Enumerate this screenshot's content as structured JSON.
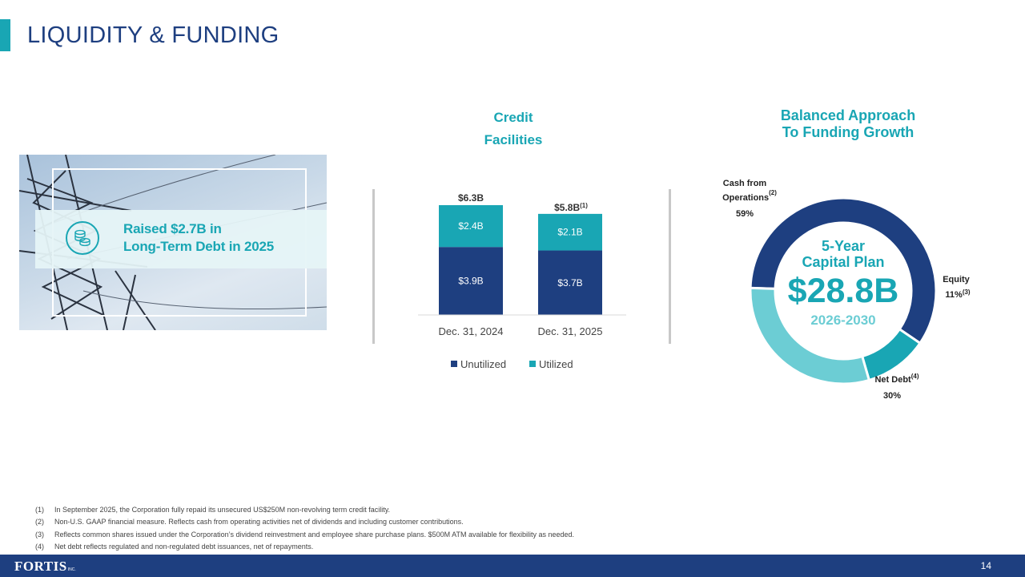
{
  "header": {
    "title": "LIQUIDITY & FUNDING"
  },
  "callout": {
    "line1": "Raised $2.7B in",
    "line2": "Long-Term Debt in 2025",
    "icon": "coins-icon"
  },
  "credit": {
    "title_line1": "Credit",
    "title_line2": "Facilities",
    "total_labels": [
      "$6.3B",
      "$5.8B"
    ],
    "total_footnote_2": "(1)"
  },
  "funding": {
    "title_line1": "Balanced Approach",
    "title_line2": "To Funding Growth",
    "center_line1": "5-Year",
    "center_line2": "Capital Plan",
    "center_value": "$28.8B",
    "center_years": "2026-2030",
    "labels": {
      "cfo_line1": "Cash from",
      "cfo_line2": "Operations",
      "cfo_fn": "(2)",
      "cfo_pct": "59%",
      "equity_line1": "Equity",
      "equity_pct": "11%",
      "equity_fn": "(3)",
      "debt_line1": "Net Debt",
      "debt_fn": "(4)",
      "debt_pct": "30%"
    }
  },
  "chart_data": [
    {
      "type": "bar",
      "stacked": true,
      "categories": [
        "Dec. 31, 2024",
        "Dec. 31, 2025"
      ],
      "series": [
        {
          "name": "Unutilized",
          "values": [
            3.9,
            3.7
          ],
          "labels": [
            "$3.9B",
            "$3.7B"
          ],
          "color": "#1e3f80"
        },
        {
          "name": "Utilized",
          "values": [
            2.4,
            2.1
          ],
          "labels": [
            "$2.4B",
            "$2.1B"
          ],
          "color": "#19a6b4"
        }
      ],
      "totals": [
        6.3,
        5.8
      ],
      "legend": "bottom",
      "ylim": [
        0,
        6.3
      ]
    },
    {
      "type": "pie",
      "donut": true,
      "categories": [
        "Cash from Operations",
        "Equity",
        "Net Debt"
      ],
      "values": [
        59,
        11,
        30
      ],
      "colors": [
        "#1e3f80",
        "#19a6b4",
        "#6ccdd4"
      ]
    }
  ],
  "footnotes": [
    {
      "num": "(1)",
      "text": "In September 2025, the Corporation fully repaid its unsecured US$250M non-revolving term credit facility."
    },
    {
      "num": "(2)",
      "text": "Non-U.S. GAAP financial measure. Reflects cash from operating activities net of dividends and including customer contributions."
    },
    {
      "num": "(3)",
      "text": "Reflects common shares issued under the Corporation’s dividend reinvestment and employee share purchase plans. $500M ATM available for flexibility as needed."
    },
    {
      "num": "(4)",
      "text": "Net debt reflects regulated and non-regulated debt issuances, net of repayments."
    }
  ],
  "footer": {
    "logo_text": "FORTIS",
    "logo_inc": "INC.",
    "page_number": "14"
  },
  "colors": {
    "navy": "#1e3f80",
    "teal": "#19a6b4",
    "light_teal": "#6ccdd4"
  }
}
